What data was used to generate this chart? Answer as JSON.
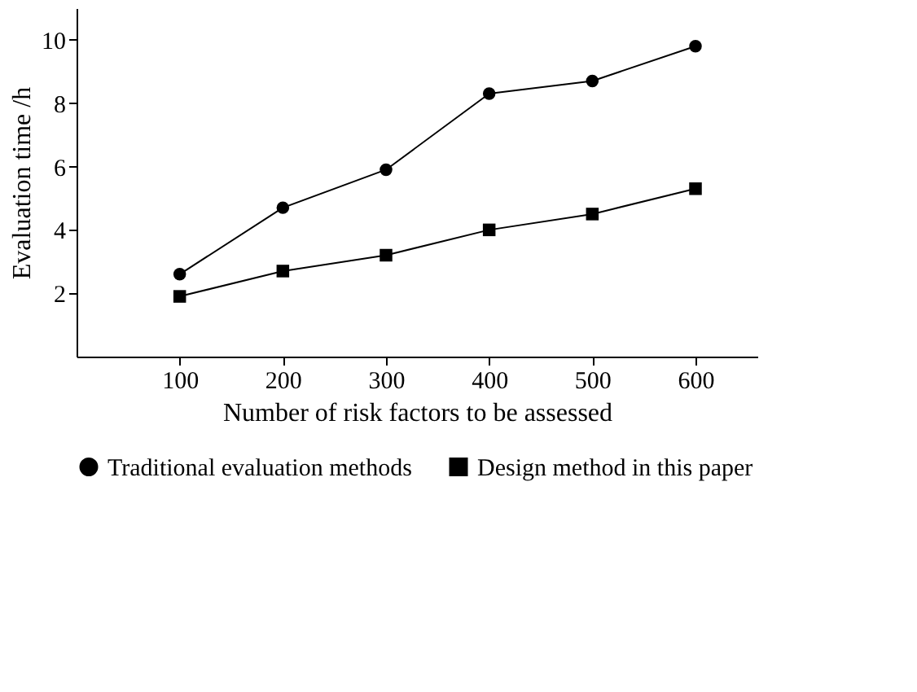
{
  "chart_data": {
    "type": "line",
    "xlabel": "Number of risk factors to be assessed",
    "ylabel": "Evaluation time /h",
    "x": [
      100,
      200,
      300,
      400,
      500,
      600
    ],
    "xlim": [
      0,
      660
    ],
    "xticks": [
      100,
      200,
      300,
      400,
      500,
      600
    ],
    "ylim": [
      0,
      11
    ],
    "yticks": [
      2,
      4,
      6,
      8,
      10
    ],
    "series": [
      {
        "name": "Traditional evaluation methods",
        "color": "#000000",
        "marker": "circle",
        "values": [
          2.6,
          4.7,
          5.9,
          8.3,
          8.7,
          9.8
        ]
      },
      {
        "name": "Design method in this paper",
        "color": "#000000",
        "marker": "square",
        "values": [
          1.9,
          2.7,
          3.2,
          4.0,
          4.5,
          5.3
        ]
      }
    ],
    "grid": false,
    "legend": "bottom",
    "line_style": "solid"
  }
}
